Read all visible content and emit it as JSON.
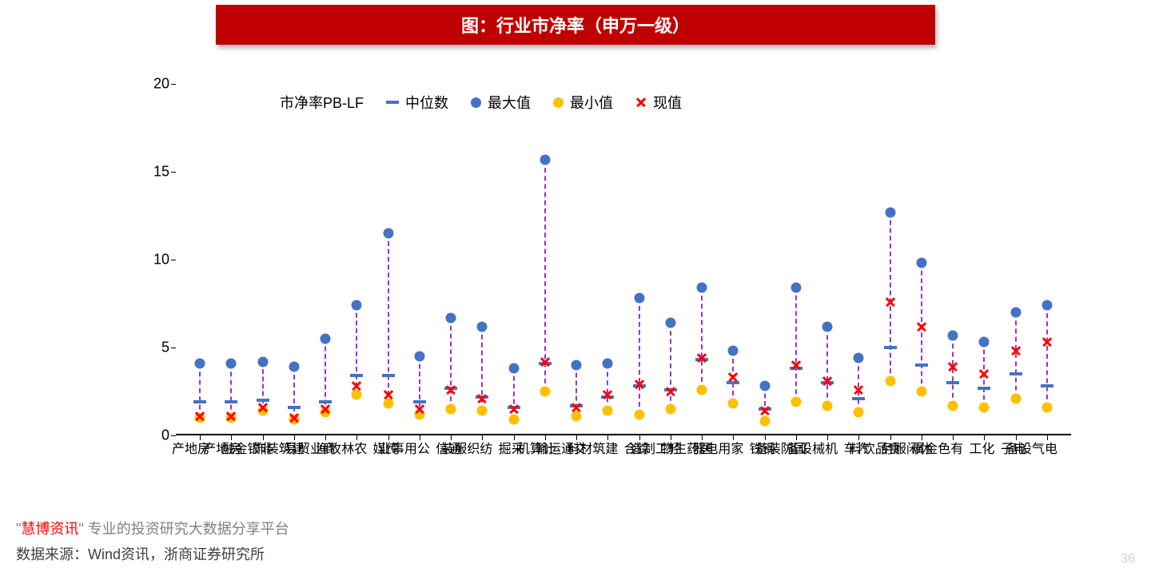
{
  "title": "图：行业市净率（申万一级）",
  "legend_title": "市净率PB-LF",
  "legend": {
    "median": "中位数",
    "max": "最大值",
    "min": "最小值",
    "current": "现值"
  },
  "chart": {
    "ylim": [
      0,
      20
    ],
    "ytick_step": 5,
    "colors": {
      "title_bg": "#c00000",
      "title_text": "#ffffff",
      "max_dot": "#4472c4",
      "min_dot": "#ffc000",
      "median_tick": "#4472c4",
      "current_x": "#ff0000",
      "range_line": "#9933cc",
      "axis": "#000000"
    },
    "categories": [
      "房地产",
      "房地产",
      "非银金融",
      "建筑装饰",
      "商业贸易",
      "农林牧渔",
      "传媒",
      "公用事业",
      "通信",
      "纺织服装",
      "采掘",
      "计算机",
      "交通运输",
      "建筑材料",
      "综合",
      "轻工制造",
      "医药生物",
      "家用电器",
      "钢铁",
      "国防装备",
      "机械设备",
      "汽车",
      "食品饮料",
      "休闲服务",
      "有色金属",
      "化工",
      "电子",
      "电气设备"
    ],
    "max": [
      4.1,
      4.1,
      4.2,
      3.9,
      5.5,
      7.4,
      11.5,
      4.5,
      6.7,
      6.2,
      3.8,
      15.7,
      4.0,
      4.1,
      7.8,
      6.4,
      8.4,
      4.8,
      2.8,
      8.4,
      6.2,
      4.4,
      12.7,
      9.8,
      5.7,
      5.3,
      7.0,
      7.4
    ],
    "min": [
      1.0,
      1.0,
      1.4,
      0.9,
      1.3,
      2.3,
      1.8,
      1.2,
      1.5,
      1.4,
      0.9,
      2.5,
      1.1,
      1.4,
      1.2,
      1.5,
      2.6,
      1.8,
      0.8,
      1.9,
      1.7,
      1.3,
      3.1,
      2.5,
      1.7,
      1.6,
      2.1,
      1.6
    ],
    "median": [
      1.9,
      1.9,
      2.0,
      1.6,
      1.9,
      3.4,
      3.4,
      1.9,
      2.7,
      2.2,
      1.6,
      4.1,
      1.7,
      2.2,
      2.8,
      2.6,
      4.3,
      3.0,
      1.5,
      3.8,
      3.0,
      2.1,
      5.0,
      4.0,
      3.0,
      2.7,
      3.5,
      2.8
    ],
    "current": [
      1.1,
      1.1,
      1.6,
      1.0,
      1.5,
      2.8,
      2.3,
      1.5,
      2.6,
      2.1,
      1.5,
      4.2,
      1.6,
      2.3,
      2.9,
      2.5,
      4.4,
      3.3,
      1.4,
      4.0,
      3.1,
      2.6,
      7.6,
      6.2,
      3.9,
      3.5,
      4.8,
      5.3
    ]
  },
  "footer": {
    "line1_pre": "\"",
    "line1_red": "慧博资讯",
    "line1_post": "\" 专业的投资研究大数据分享平台",
    "line2": "数据来源：Wind资讯，浙商证券研究所"
  },
  "page_number": "36"
}
